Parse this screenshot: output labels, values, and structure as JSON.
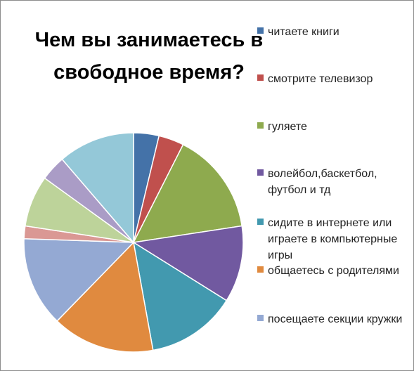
{
  "chart_data": {
    "type": "pie",
    "title_lines": [
      "Чем вы занимаетесь в",
      "свободное время?"
    ],
    "slices": [
      {
        "label": "читаете книги",
        "value": 3.8,
        "color": "#4472A8"
      },
      {
        "label": "смотрите телевизор",
        "value": 3.8,
        "color": "#C0504D"
      },
      {
        "label": "гуляете",
        "value": 15.4,
        "color": "#8EAA4E"
      },
      {
        "label": "волейбол,баскетбол, футбол и тд",
        "value": 11.5,
        "color": "#7159A0"
      },
      {
        "label": "сидите в интернете или играете в компьютерные игры",
        "value": 13.5,
        "color": "#4299AF"
      },
      {
        "label": "общаетесь с родителями",
        "value": 15.4,
        "color": "#E08A3F"
      },
      {
        "label": "посещаете секции кружки",
        "value": 13.5,
        "color": "#94A9D3"
      },
      {
        "label": "",
        "value": 1.9,
        "color": "#DA9894"
      },
      {
        "label": "",
        "value": 7.7,
        "color": "#BDD39A"
      },
      {
        "label": "",
        "value": 3.8,
        "color": "#AA9CC6"
      },
      {
        "label": "",
        "value": 11.5,
        "color": "#94C8D8"
      }
    ],
    "legend_position": "right"
  }
}
